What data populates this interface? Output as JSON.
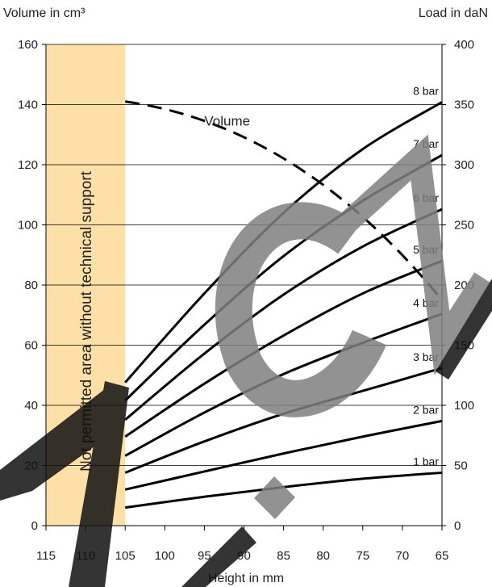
{
  "chart_data": {
    "type": "line",
    "title": "",
    "xlabel": "Height in mm",
    "ylabel_left": "Volume in cm³",
    "ylabel_right": "Load in daN",
    "x_ticks": [
      115,
      110,
      105,
      100,
      95,
      90,
      85,
      80,
      75,
      70,
      65
    ],
    "y_left_ticks": [
      0,
      20,
      40,
      60,
      80,
      100,
      120,
      140,
      160
    ],
    "y_right_ticks": [
      0,
      50,
      100,
      150,
      200,
      250,
      300,
      350,
      400
    ],
    "xlim": [
      115,
      65
    ],
    "ylim_left": [
      0,
      160
    ],
    "ylim_right": [
      0,
      400
    ],
    "grid": "horizontal",
    "shaded_region": {
      "x_range": [
        115,
        105
      ],
      "label": "Not permitted area without technical support",
      "color": "#fde0a8"
    },
    "volume_series": {
      "name": "Volume",
      "axis": "left",
      "style": "dashed",
      "x": [
        105,
        65
      ],
      "y": [
        141,
        75
      ]
    },
    "load_series": [
      {
        "name": "1 bar",
        "axis": "right",
        "x": [
          105,
          95,
          85,
          75,
          65
        ],
        "y": [
          15,
          24,
          32,
          39,
          44
        ]
      },
      {
        "name": "2 bar",
        "axis": "right",
        "x": [
          105,
          95,
          85,
          75,
          65
        ],
        "y": [
          30,
          45,
          60,
          74,
          87
        ]
      },
      {
        "name": "3 bar",
        "axis": "right",
        "x": [
          105,
          95,
          85,
          75,
          65
        ],
        "y": [
          44,
          70,
          93,
          112,
          131
        ]
      },
      {
        "name": "4 bar",
        "axis": "right",
        "x": [
          105,
          95,
          85,
          75,
          65
        ],
        "y": [
          58,
          94,
          126,
          152,
          176
        ]
      },
      {
        "name": "5 bar",
        "axis": "right",
        "x": [
          105,
          95,
          85,
          75,
          65
        ],
        "y": [
          74,
          118,
          158,
          193,
          220
        ]
      },
      {
        "name": "6 bar",
        "axis": "right",
        "x": [
          105,
          95,
          85,
          75,
          65
        ],
        "y": [
          88,
          143,
          192,
          232,
          263
        ]
      },
      {
        "name": "7 bar",
        "axis": "right",
        "x": [
          105,
          95,
          85,
          75,
          65
        ],
        "y": [
          104,
          167,
          224,
          270,
          308
        ]
      },
      {
        "name": "8 bar",
        "axis": "right",
        "x": [
          105,
          95,
          85,
          75,
          65
        ],
        "y": [
          119,
          193,
          260,
          313,
          352
        ]
      }
    ],
    "colors": {
      "lines": "#000000",
      "grid": "#000000",
      "shade": "#fde0a8",
      "watermark": "#7f7f7f"
    }
  },
  "watermark": {
    "text": "C"
  }
}
